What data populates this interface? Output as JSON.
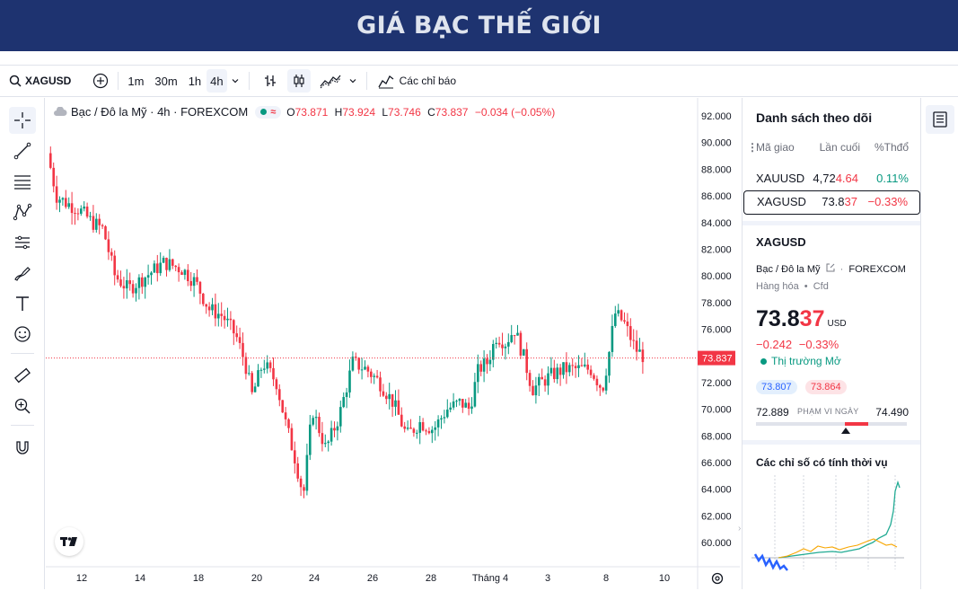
{
  "page_title": "GIÁ BẠC THẾ GIỚI",
  "toolbar": {
    "symbol": "XAGUSD",
    "intervals": [
      "1m",
      "30m",
      "1h",
      "4h"
    ],
    "active_interval": "4h",
    "indicators_label": "Các chỉ báo"
  },
  "legend": {
    "title": "Bạc / Đô la Mỹ · 4h · FOREXCOM",
    "approx_symbol": "≈",
    "o_label": "O",
    "o_value": "73.871",
    "h_label": "H",
    "h_value": "73.924",
    "l_label": "L",
    "l_value": "73.746",
    "c_label": "C",
    "c_value": "73.837",
    "change": "−0.034 (−0.05%)"
  },
  "price_axis": {
    "ticks": [
      "92.000",
      "90.000",
      "88.000",
      "86.000",
      "84.000",
      "82.000",
      "80.000",
      "78.000",
      "76.000",
      "74.000",
      "72.000",
      "70.000",
      "68.000",
      "66.000",
      "64.000",
      "62.000",
      "60.000"
    ],
    "current_label": "73.837",
    "current_value": 73.837
  },
  "time_axis": {
    "ticks": [
      "12",
      "14",
      "18",
      "20",
      "24",
      "26",
      "28",
      "Tháng 4",
      "3",
      "8",
      "10"
    ]
  },
  "chart_data": {
    "type": "candlestick",
    "y_range": [
      59,
      93
    ],
    "last_price": 73.837,
    "series": []
  },
  "watchlist": {
    "title": "Danh sách theo dõi",
    "headers": {
      "symbol": "Mã giao",
      "last": "Lần cuối",
      "change": "%Thđổ"
    },
    "rows": [
      {
        "symbol": "XAUUSD",
        "last_a": "4,72",
        "last_b": "4.64",
        "change": "0.11%",
        "dir": "pos"
      },
      {
        "symbol": "XAGUSD",
        "last_a": "73.8",
        "last_b": "37",
        "change": "−0.33%",
        "dir": "neg"
      }
    ]
  },
  "details": {
    "symbol": "XAGUSD",
    "name": "Bạc / Đô la Mỹ",
    "exchange": "FOREXCOM",
    "category": "Hàng hóa",
    "type": "Cfd",
    "price_main": "73.8",
    "price_last": "37",
    "currency": "USD",
    "change_abs": "−0.242",
    "change_pct": "−0.33%",
    "market_status": "Thị trường Mở",
    "bid": "73.807",
    "ask": "73.864",
    "day_low": "72.889",
    "day_high": "74.490",
    "range_label": "PHẠM VI NGÀY",
    "seasonal_title": "Các chỉ số có tính thời vụ"
  },
  "colors": {
    "banner_bg": "#1e3370",
    "up": "#089981",
    "down": "#f23645"
  }
}
